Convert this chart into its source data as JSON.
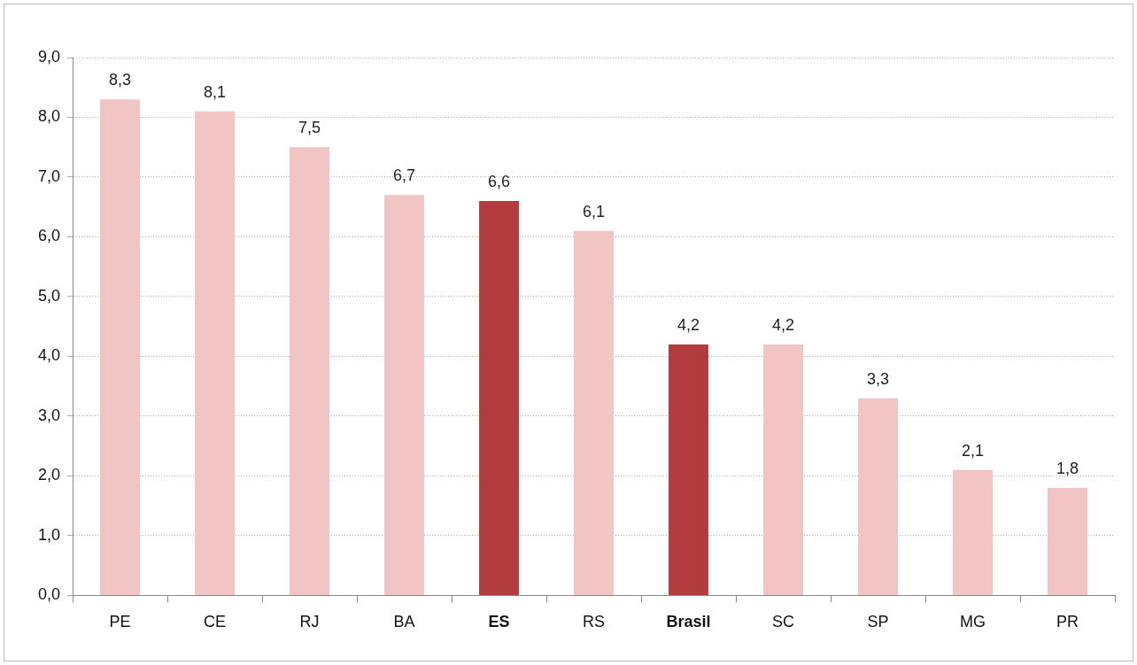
{
  "chart_data": {
    "type": "bar",
    "categories": [
      "PE",
      "CE",
      "RJ",
      "BA",
      "ES",
      "RS",
      "Brasil",
      "SC",
      "SP",
      "MG",
      "PR"
    ],
    "values": [
      8.3,
      8.1,
      7.5,
      6.7,
      6.6,
      6.1,
      4.2,
      4.2,
      3.3,
      2.1,
      1.8
    ],
    "colors": [
      "#f0c5c3",
      "#f0c5c3",
      "#f0c5c3",
      "#f0c5c3",
      "#b33c3f",
      "#f0c5c3",
      "#b33c3f",
      "#f0c5c3",
      "#f0c5c3",
      "#f0c5c3",
      "#f0c5c3"
    ],
    "value_labels": [
      "8,3",
      "8,1",
      "7,5",
      "6,7",
      "6,6",
      "6,1",
      "4,2",
      "4,2",
      "3,3",
      "2,1",
      "1,8"
    ],
    "ylim": [
      0,
      9
    ],
    "yticks": [
      {
        "value": 0,
        "label": "0,0"
      },
      {
        "value": 1,
        "label": "1,0"
      },
      {
        "value": 2,
        "label": "2,0"
      },
      {
        "value": 3,
        "label": "3,0"
      },
      {
        "value": 4,
        "label": "4,0"
      },
      {
        "value": 5,
        "label": "5,0"
      },
      {
        "value": 6,
        "label": "6,0"
      },
      {
        "value": 7,
        "label": "7,0"
      },
      {
        "value": 8,
        "label": "8,0"
      },
      {
        "value": 9,
        "label": "9,0"
      }
    ],
    "grid": "y",
    "legend": false
  }
}
